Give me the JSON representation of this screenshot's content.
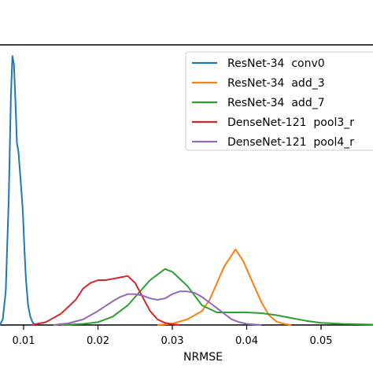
{
  "chart_data": {
    "type": "line",
    "xlabel": "NRMSE",
    "ylabel": "",
    "xlim": [
      0.007,
      0.0575
    ],
    "ylim": [
      0,
      1.0
    ],
    "xticks": [
      0.01,
      0.02,
      0.03,
      0.04,
      0.05
    ],
    "xtick_labels": [
      "0.01",
      "0.02",
      "0.03",
      "0.04",
      "0.05"
    ],
    "grid": false,
    "legend_position": "upper-right",
    "series": [
      {
        "name": "ResNet-34  conv0",
        "color": "#1f77b4",
        "x": [
          0.0068,
          0.0072,
          0.0076,
          0.008,
          0.0083,
          0.0085,
          0.0087,
          0.0089,
          0.0091,
          0.0093,
          0.0095,
          0.0097,
          0.0099,
          0.0101,
          0.0103,
          0.0106,
          0.0109,
          0.0112,
          0.0115
        ],
        "y": [
          0.0,
          0.02,
          0.12,
          0.45,
          0.82,
          0.96,
          0.93,
          0.8,
          0.65,
          0.62,
          0.55,
          0.48,
          0.4,
          0.28,
          0.17,
          0.07,
          0.03,
          0.01,
          0.0
        ]
      },
      {
        "name": "ResNet-34  add_3",
        "color": "#ff7f0e",
        "x": [
          0.028,
          0.03,
          0.032,
          0.034,
          0.035,
          0.036,
          0.037,
          0.038,
          0.0385,
          0.039,
          0.0395,
          0.04,
          0.041,
          0.042,
          0.043,
          0.044,
          0.045,
          0.046
        ],
        "y": [
          0.0,
          0.005,
          0.02,
          0.05,
          0.09,
          0.15,
          0.21,
          0.25,
          0.27,
          0.25,
          0.23,
          0.2,
          0.14,
          0.08,
          0.035,
          0.012,
          0.004,
          0.0
        ]
      },
      {
        "name": "ResNet-34  add_7",
        "color": "#2ca02c",
        "x": [
          0.015,
          0.018,
          0.02,
          0.022,
          0.024,
          0.026,
          0.027,
          0.028,
          0.029,
          0.03,
          0.032,
          0.034,
          0.036,
          0.038,
          0.04,
          0.042,
          0.044,
          0.046,
          0.048,
          0.05,
          0.053,
          0.056,
          0.0575
        ],
        "y": [
          0.0,
          0.004,
          0.01,
          0.03,
          0.07,
          0.13,
          0.16,
          0.18,
          0.2,
          0.19,
          0.14,
          0.07,
          0.045,
          0.045,
          0.045,
          0.042,
          0.035,
          0.025,
          0.015,
          0.008,
          0.004,
          0.002,
          0.001
        ]
      },
      {
        "name": "DenseNet-121  pool3_r",
        "color": "#d62728",
        "x": [
          0.011,
          0.013,
          0.015,
          0.017,
          0.018,
          0.019,
          0.02,
          0.021,
          0.022,
          0.023,
          0.024,
          0.025,
          0.026,
          0.027,
          0.028,
          0.029,
          0.03,
          0.031
        ],
        "y": [
          0.0,
          0.01,
          0.04,
          0.09,
          0.13,
          0.15,
          0.16,
          0.16,
          0.165,
          0.17,
          0.175,
          0.15,
          0.1,
          0.05,
          0.02,
          0.008,
          0.003,
          0.0
        ]
      },
      {
        "name": "DenseNet-121  pool4_r",
        "color": "#9467bd",
        "x": [
          0.014,
          0.016,
          0.018,
          0.02,
          0.022,
          0.023,
          0.024,
          0.025,
          0.026,
          0.027,
          0.028,
          0.029,
          0.03,
          0.031,
          0.032,
          0.033,
          0.034,
          0.035,
          0.036,
          0.037,
          0.038,
          0.039,
          0.04,
          0.042
        ],
        "y": [
          0.0,
          0.006,
          0.02,
          0.05,
          0.085,
          0.1,
          0.11,
          0.11,
          0.105,
          0.095,
          0.09,
          0.095,
          0.11,
          0.12,
          0.12,
          0.115,
          0.1,
          0.08,
          0.06,
          0.04,
          0.02,
          0.01,
          0.004,
          0.0
        ]
      }
    ]
  }
}
